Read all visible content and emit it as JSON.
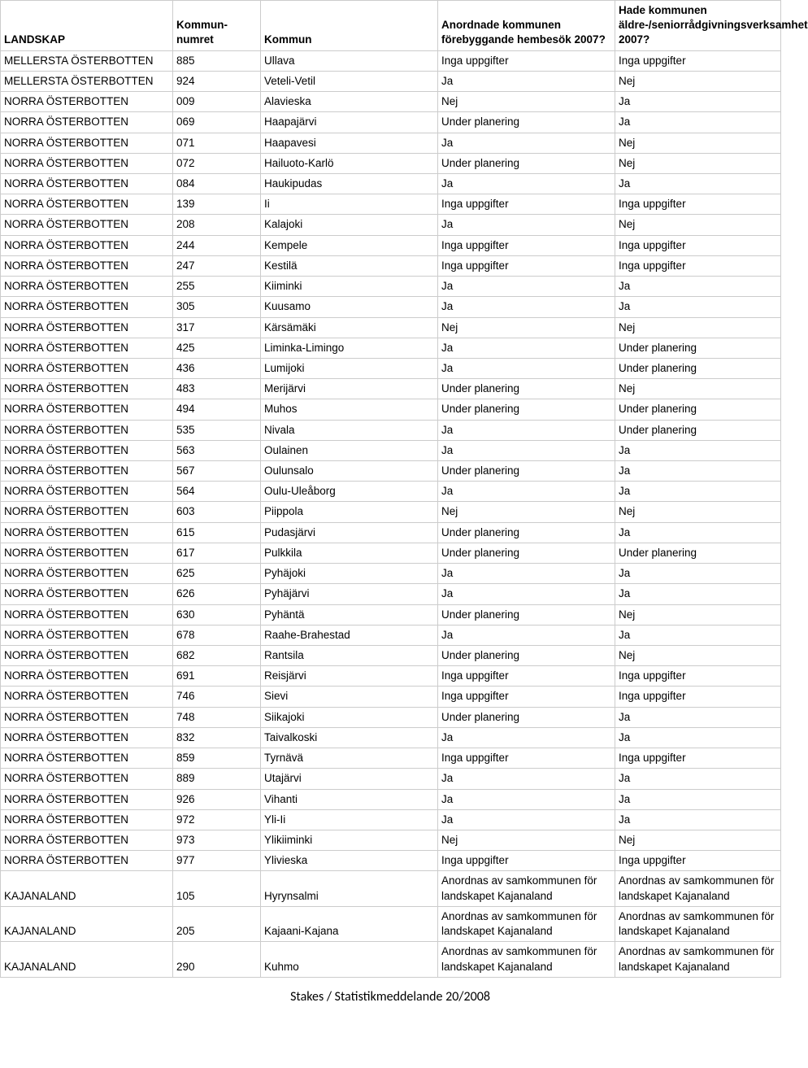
{
  "table": {
    "headers": {
      "landskap": "LANDSKAP",
      "nummer": "Kommun-numret",
      "kommun": "Kommun",
      "q1": "Anordnade kommunen förebyggande hembesök  2007?",
      "q2": "Hade kommunen äldre-/seniorrådgivningsverksamhet 2007?"
    },
    "rows": [
      {
        "landskap": "MELLERSTA ÖSTERBOTTEN",
        "nummer": "885",
        "kommun": "Ullava",
        "q1": "Inga uppgifter",
        "q2": "Inga uppgifter"
      },
      {
        "landskap": "MELLERSTA ÖSTERBOTTEN",
        "nummer": "924",
        "kommun": "Veteli-Vetil",
        "q1": "Ja",
        "q2": "Nej"
      },
      {
        "landskap": "NORRA ÖSTERBOTTEN",
        "nummer": "009",
        "kommun": "Alavieska",
        "q1": "Nej",
        "q2": "Ja"
      },
      {
        "landskap": "NORRA ÖSTERBOTTEN",
        "nummer": "069",
        "kommun": "Haapajärvi",
        "q1": "Under planering",
        "q2": "Ja"
      },
      {
        "landskap": "NORRA ÖSTERBOTTEN",
        "nummer": "071",
        "kommun": "Haapavesi",
        "q1": "Ja",
        "q2": "Nej"
      },
      {
        "landskap": "NORRA ÖSTERBOTTEN",
        "nummer": "072",
        "kommun": "Hailuoto-Karlö",
        "q1": "Under planering",
        "q2": "Nej"
      },
      {
        "landskap": "NORRA ÖSTERBOTTEN",
        "nummer": "084",
        "kommun": "Haukipudas",
        "q1": "Ja",
        "q2": "Ja"
      },
      {
        "landskap": "NORRA ÖSTERBOTTEN",
        "nummer": "139",
        "kommun": "Ii",
        "q1": "Inga uppgifter",
        "q2": "Inga uppgifter"
      },
      {
        "landskap": "NORRA ÖSTERBOTTEN",
        "nummer": "208",
        "kommun": "Kalajoki",
        "q1": "Ja",
        "q2": "Nej"
      },
      {
        "landskap": "NORRA ÖSTERBOTTEN",
        "nummer": "244",
        "kommun": "Kempele",
        "q1": "Inga uppgifter",
        "q2": "Inga uppgifter"
      },
      {
        "landskap": "NORRA ÖSTERBOTTEN",
        "nummer": "247",
        "kommun": "Kestilä",
        "q1": "Inga uppgifter",
        "q2": "Inga uppgifter"
      },
      {
        "landskap": "NORRA ÖSTERBOTTEN",
        "nummer": "255",
        "kommun": "Kiiminki",
        "q1": "Ja",
        "q2": "Ja"
      },
      {
        "landskap": "NORRA ÖSTERBOTTEN",
        "nummer": "305",
        "kommun": "Kuusamo",
        "q1": "Ja",
        "q2": "Ja"
      },
      {
        "landskap": "NORRA ÖSTERBOTTEN",
        "nummer": "317",
        "kommun": "Kärsämäki",
        "q1": "Nej",
        "q2": "Nej"
      },
      {
        "landskap": "NORRA ÖSTERBOTTEN",
        "nummer": "425",
        "kommun": "Liminka-Limingo",
        "q1": "Ja",
        "q2": "Under planering"
      },
      {
        "landskap": "NORRA ÖSTERBOTTEN",
        "nummer": "436",
        "kommun": "Lumijoki",
        "q1": "Ja",
        "q2": "Under planering"
      },
      {
        "landskap": "NORRA ÖSTERBOTTEN",
        "nummer": "483",
        "kommun": "Merijärvi",
        "q1": "Under planering",
        "q2": "Nej"
      },
      {
        "landskap": "NORRA ÖSTERBOTTEN",
        "nummer": "494",
        "kommun": "Muhos",
        "q1": "Under planering",
        "q2": "Under planering"
      },
      {
        "landskap": "NORRA ÖSTERBOTTEN",
        "nummer": "535",
        "kommun": "Nivala",
        "q1": "Ja",
        "q2": "Under planering"
      },
      {
        "landskap": "NORRA ÖSTERBOTTEN",
        "nummer": "563",
        "kommun": "Oulainen",
        "q1": "Ja",
        "q2": "Ja"
      },
      {
        "landskap": "NORRA ÖSTERBOTTEN",
        "nummer": "567",
        "kommun": "Oulunsalo",
        "q1": "Under planering",
        "q2": "Ja"
      },
      {
        "landskap": "NORRA ÖSTERBOTTEN",
        "nummer": "564",
        "kommun": "Oulu-Uleåborg",
        "q1": "Ja",
        "q2": "Ja"
      },
      {
        "landskap": "NORRA ÖSTERBOTTEN",
        "nummer": "603",
        "kommun": "Piippola",
        "q1": "Nej",
        "q2": "Nej"
      },
      {
        "landskap": "NORRA ÖSTERBOTTEN",
        "nummer": "615",
        "kommun": "Pudasjärvi",
        "q1": "Under planering",
        "q2": "Ja"
      },
      {
        "landskap": "NORRA ÖSTERBOTTEN",
        "nummer": "617",
        "kommun": "Pulkkila",
        "q1": "Under planering",
        "q2": "Under planering"
      },
      {
        "landskap": "NORRA ÖSTERBOTTEN",
        "nummer": "625",
        "kommun": "Pyhäjoki",
        "q1": "Ja",
        "q2": "Ja"
      },
      {
        "landskap": "NORRA ÖSTERBOTTEN",
        "nummer": "626",
        "kommun": "Pyhäjärvi",
        "q1": "Ja",
        "q2": "Ja"
      },
      {
        "landskap": "NORRA ÖSTERBOTTEN",
        "nummer": "630",
        "kommun": "Pyhäntä",
        "q1": "Under planering",
        "q2": "Nej"
      },
      {
        "landskap": "NORRA ÖSTERBOTTEN",
        "nummer": "678",
        "kommun": "Raahe-Brahestad",
        "q1": "Ja",
        "q2": "Ja"
      },
      {
        "landskap": "NORRA ÖSTERBOTTEN",
        "nummer": "682",
        "kommun": "Rantsila",
        "q1": "Under planering",
        "q2": "Nej"
      },
      {
        "landskap": "NORRA ÖSTERBOTTEN",
        "nummer": "691",
        "kommun": "Reisjärvi",
        "q1": "Inga uppgifter",
        "q2": "Inga uppgifter"
      },
      {
        "landskap": "NORRA ÖSTERBOTTEN",
        "nummer": "746",
        "kommun": "Sievi",
        "q1": "Inga uppgifter",
        "q2": "Inga uppgifter"
      },
      {
        "landskap": "NORRA ÖSTERBOTTEN",
        "nummer": "748",
        "kommun": "Siikajoki",
        "q1": "Under planering",
        "q2": "Ja"
      },
      {
        "landskap": "NORRA ÖSTERBOTTEN",
        "nummer": "832",
        "kommun": "Taivalkoski",
        "q1": "Ja",
        "q2": "Ja"
      },
      {
        "landskap": "NORRA ÖSTERBOTTEN",
        "nummer": "859",
        "kommun": "Tyrnävä",
        "q1": "Inga uppgifter",
        "q2": "Inga uppgifter"
      },
      {
        "landskap": "NORRA ÖSTERBOTTEN",
        "nummer": "889",
        "kommun": "Utajärvi",
        "q1": "Ja",
        "q2": "Ja"
      },
      {
        "landskap": "NORRA ÖSTERBOTTEN",
        "nummer": "926",
        "kommun": "Vihanti",
        "q1": "Ja",
        "q2": "Ja"
      },
      {
        "landskap": "NORRA ÖSTERBOTTEN",
        "nummer": "972",
        "kommun": "Yli-Ii",
        "q1": "Ja",
        "q2": "Ja"
      },
      {
        "landskap": "NORRA ÖSTERBOTTEN",
        "nummer": "973",
        "kommun": "Ylikiiminki",
        "q1": "Nej",
        "q2": "Nej"
      },
      {
        "landskap": "NORRA ÖSTERBOTTEN",
        "nummer": "977",
        "kommun": "Ylivieska",
        "q1": "Inga uppgifter",
        "q2": "Inga uppgifter"
      },
      {
        "landskap": "KAJANALAND",
        "nummer": "105",
        "kommun": "Hyrynsalmi",
        "q1": "Anordnas av samkommunen för landskapet Kajanaland",
        "q2": "Anordnas av samkommunen för landskapet Kajanaland"
      },
      {
        "landskap": "KAJANALAND",
        "nummer": "205",
        "kommun": "Kajaani-Kajana",
        "q1": "Anordnas av samkommunen för landskapet Kajanaland",
        "q2": "Anordnas av samkommunen för landskapet Kajanaland"
      },
      {
        "landskap": "KAJANALAND",
        "nummer": "290",
        "kommun": "Kuhmo",
        "q1": "Anordnas av samkommunen för landskapet Kajanaland",
        "q2": "Anordnas av samkommunen för landskapet Kajanaland"
      }
    ]
  },
  "footer": "Stakes / Statistikmeddelande 20/2008"
}
